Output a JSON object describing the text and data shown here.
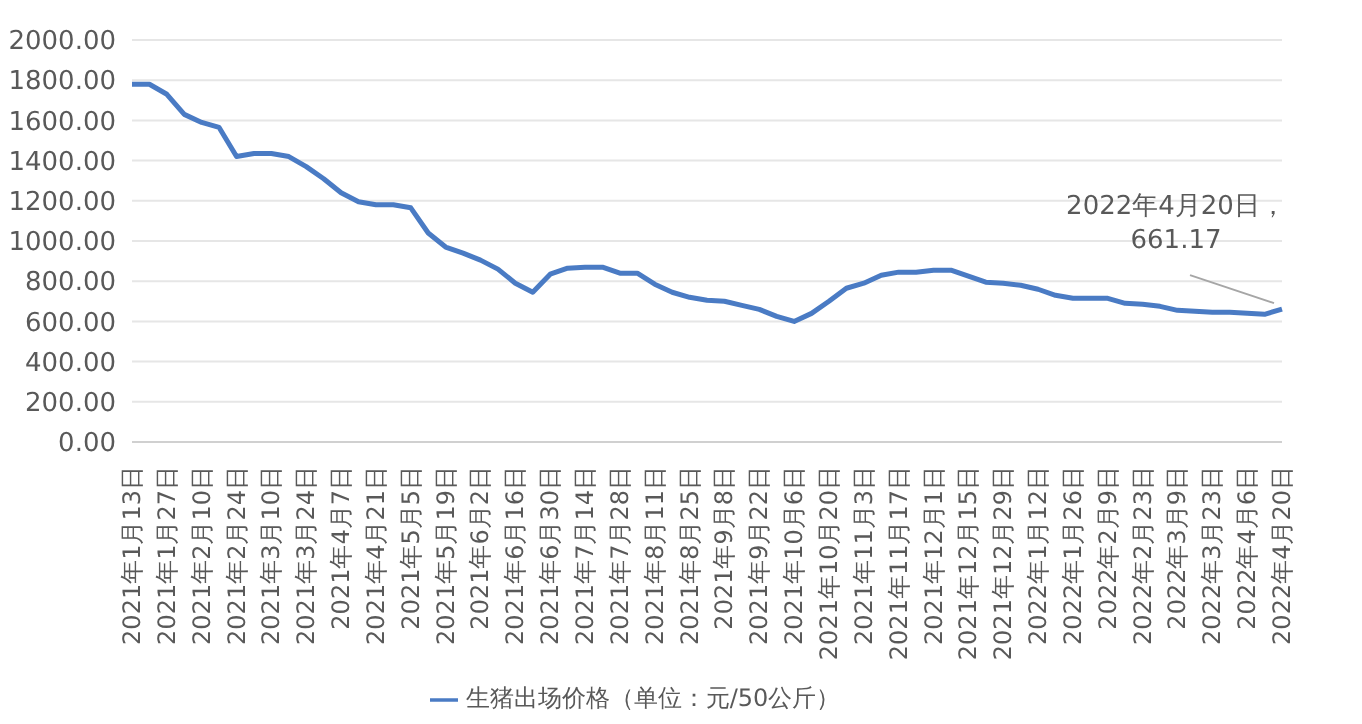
{
  "chart_data": {
    "type": "line",
    "categories": [
      "2021年1月13日",
      null,
      "2021年1月27日",
      null,
      "2021年2月10日",
      null,
      "2021年2月24日",
      null,
      "2021年3月10日",
      null,
      "2021年3月24日",
      null,
      "2021年4月7日",
      null,
      "2021年4月21日",
      null,
      "2021年5月5日",
      null,
      "2021年5月19日",
      null,
      "2021年6月2日",
      null,
      "2021年6月16日",
      null,
      "2021年6月30日",
      null,
      "2021年7月14日",
      null,
      "2021年7月28日",
      null,
      "2021年8月11日",
      null,
      "2021年8月25日",
      null,
      "2021年9月8日",
      null,
      "2021年9月22日",
      null,
      "2021年10月6日",
      null,
      "2021年10月20日",
      null,
      "2021年11月3日",
      null,
      "2021年11月17日",
      null,
      "2021年12月1日",
      null,
      "2021年12月15日",
      null,
      "2021年12月29日",
      null,
      "2022年1月12日",
      null,
      "2022年1月26日",
      null,
      "2022年2月9日",
      null,
      "2022年2月23日",
      null,
      "2022年3月9日",
      null,
      "2022年3月23日",
      null,
      "2022年4月6日",
      null,
      "2022年4月20日"
    ],
    "series": [
      {
        "name": "生猪出场价格（单位：元/50公斤）",
        "color": "#4a7bc4",
        "values": [
          1780,
          1780,
          1730,
          1630,
          1590,
          1565,
          1420,
          1435,
          1435,
          1420,
          1370,
          1310,
          1240,
          1195,
          1180,
          1180,
          1165,
          1040,
          970,
          940,
          905,
          860,
          790,
          745,
          835,
          865,
          870,
          870,
          840,
          840,
          785,
          745,
          720,
          705,
          700,
          680,
          660,
          625,
          600,
          640,
          700,
          765,
          790,
          830,
          845,
          845,
          855,
          855,
          825,
          795,
          790,
          780,
          760,
          730,
          715,
          715,
          715,
          690,
          685,
          675,
          655,
          650,
          645,
          645,
          640,
          635,
          661.17
        ]
      }
    ],
    "ylim": [
      0,
      2000
    ],
    "yticks": [
      {
        "value": 0,
        "label": "0.00"
      },
      {
        "value": 200,
        "label": "200.00"
      },
      {
        "value": 400,
        "label": "400.00"
      },
      {
        "value": 600,
        "label": "600.00"
      },
      {
        "value": 800,
        "label": "800.00"
      },
      {
        "value": 1000,
        "label": "1000.00"
      },
      {
        "value": 1200,
        "label": "1200.00"
      },
      {
        "value": 1400,
        "label": "1400.00"
      },
      {
        "value": 1600,
        "label": "1600.00"
      },
      {
        "value": 1800,
        "label": "1800.00"
      },
      {
        "value": 2000,
        "label": "2000.00"
      }
    ],
    "grid": "y",
    "legend": "bottom",
    "marker": "none",
    "line_style": "solid",
    "annotations": [
      {
        "text": "2022年4月20日，661.17",
        "x": "2022年4月20日",
        "y": 661.17
      }
    ]
  }
}
